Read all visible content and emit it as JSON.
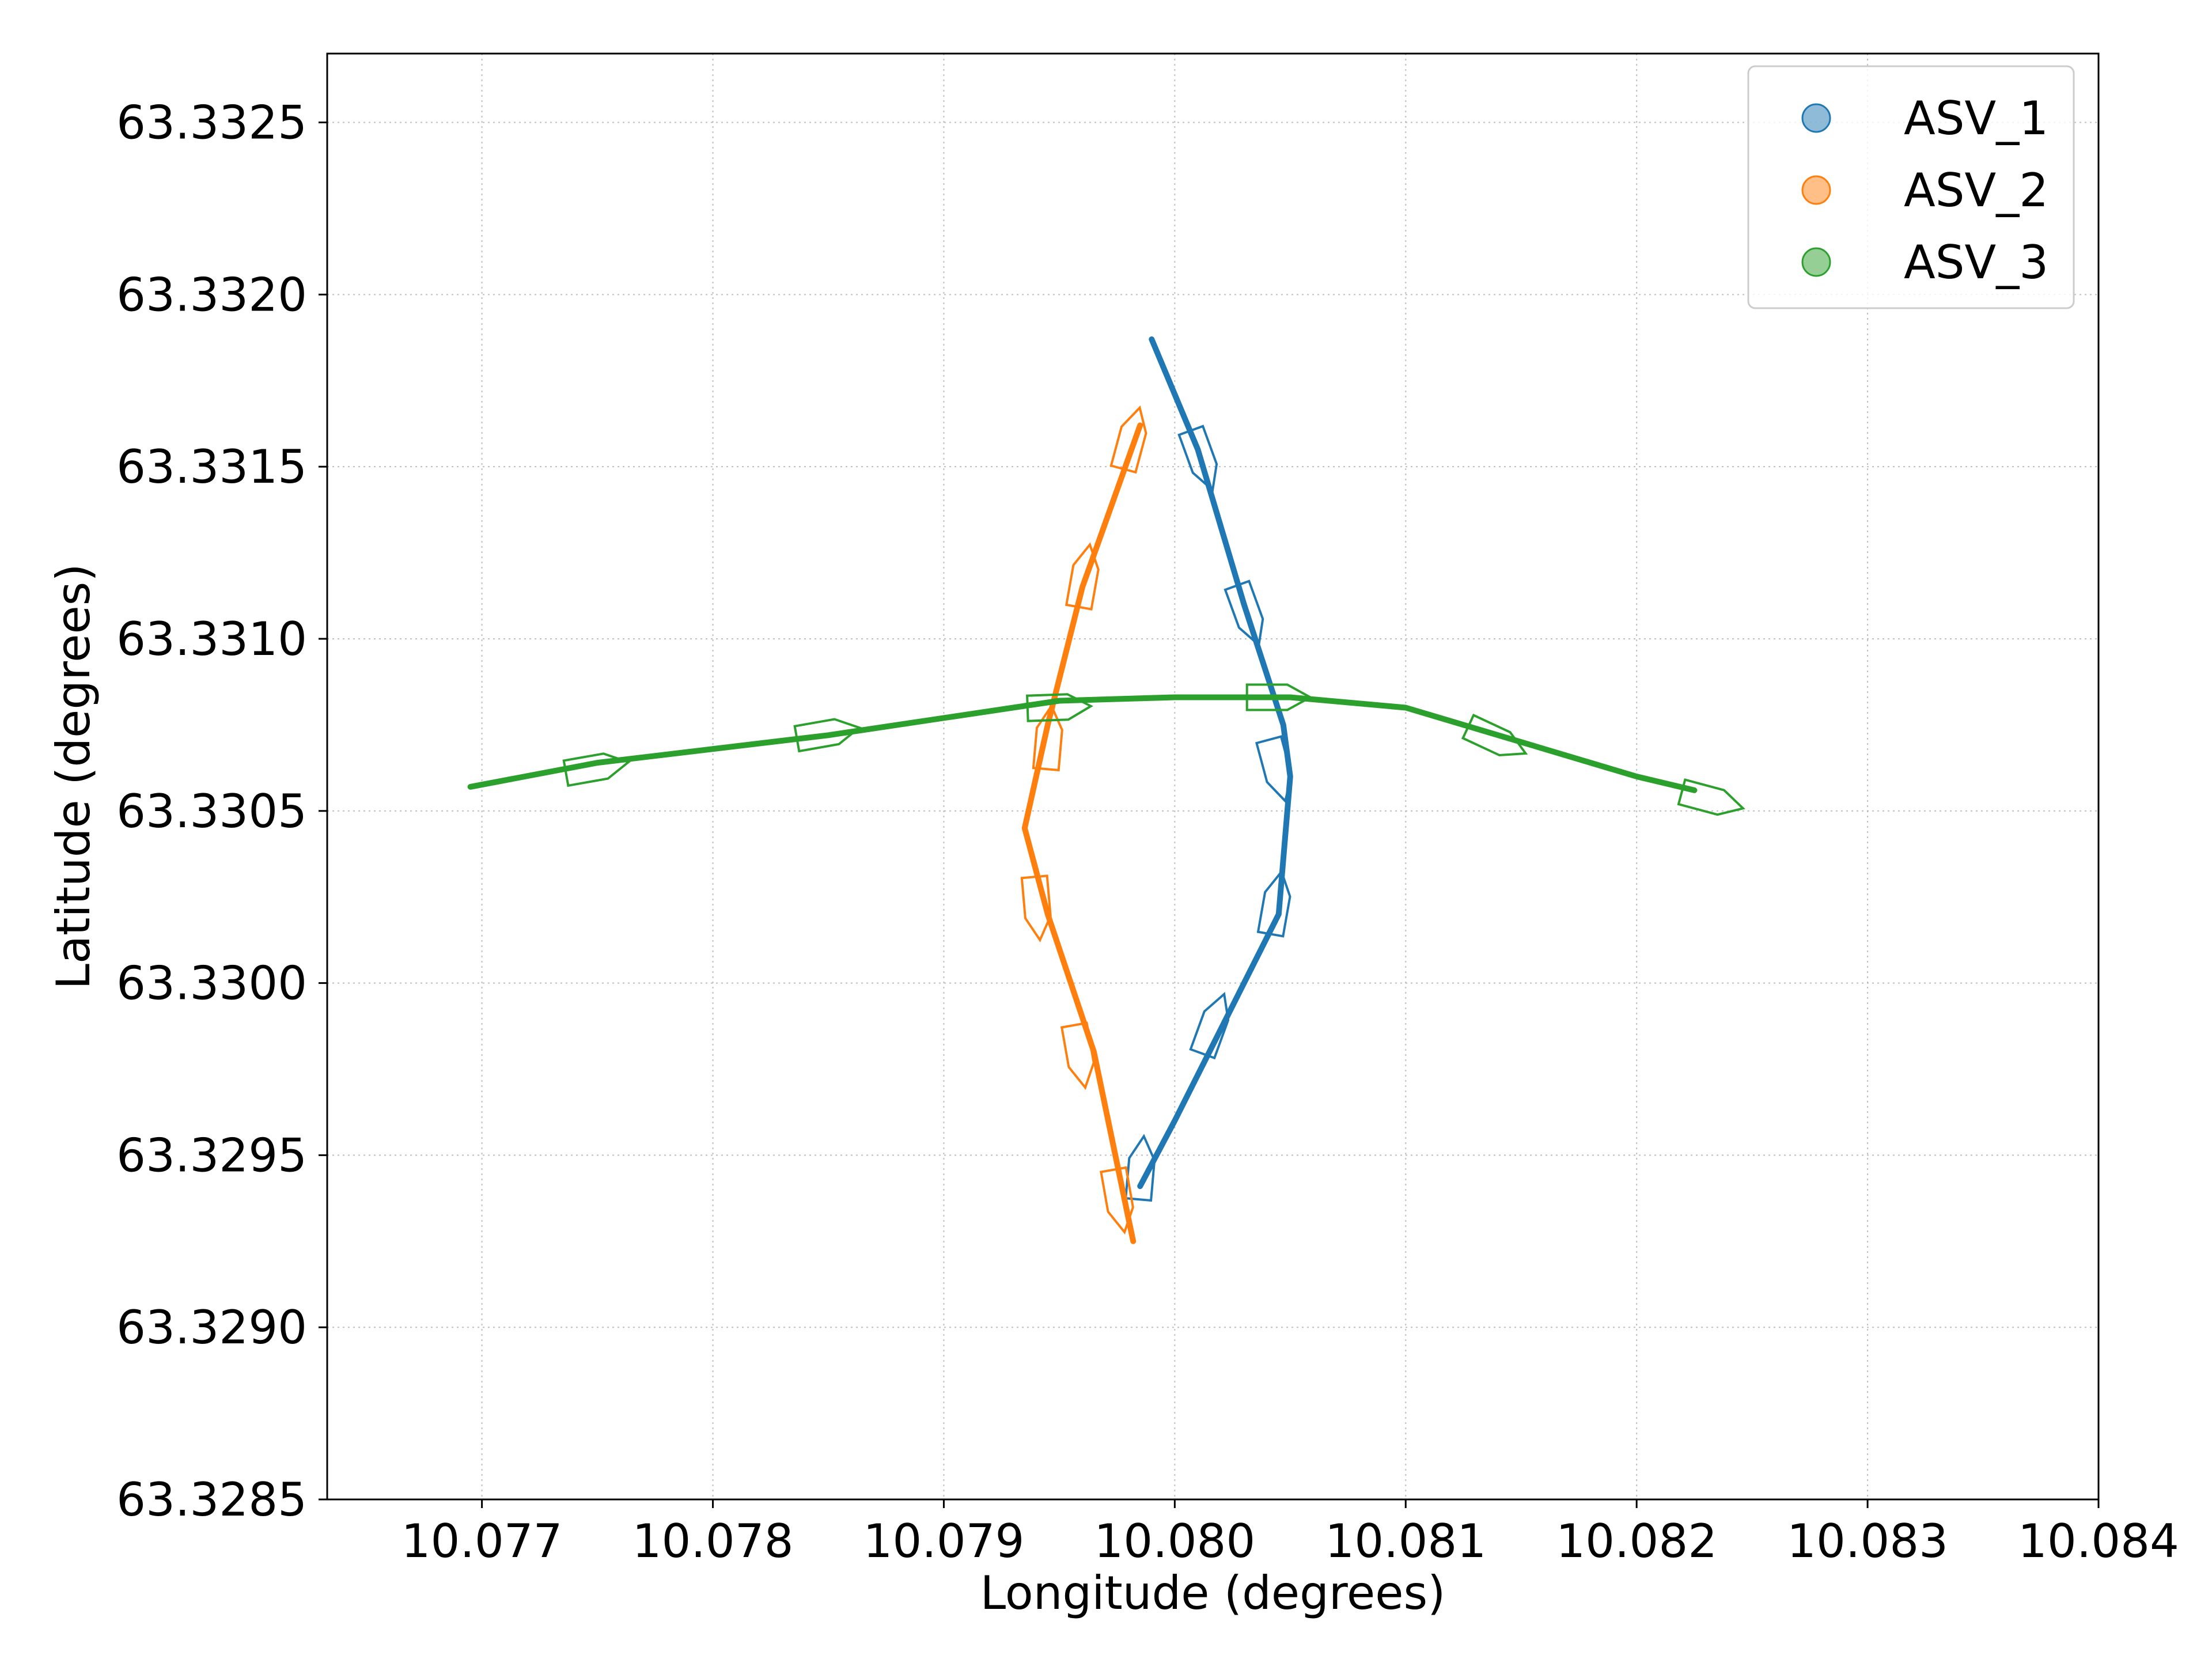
{
  "chart_data": {
    "type": "line",
    "title": "",
    "xlabel": "Longitude (degrees)",
    "ylabel": "Latitude (degrees)",
    "xlim": [
      10.07633,
      10.084
    ],
    "ylim": [
      63.3285,
      63.3327
    ],
    "xticks": [
      "10.077",
      "10.078",
      "10.079",
      "10.080",
      "10.081",
      "10.082",
      "10.083",
      "10.084"
    ],
    "yticks": [
      "63.3285",
      "63.3290",
      "63.3295",
      "63.3300",
      "63.3305",
      "63.3310",
      "63.3315",
      "63.3320",
      "63.3325"
    ],
    "grid": true,
    "legend": {
      "position": "top-right",
      "marker": "circle"
    },
    "series": [
      {
        "name": "ASV_1",
        "color": "#1f77b4",
        "x": [
          10.0799,
          10.0801,
          10.0803,
          10.08047,
          10.0805,
          10.08045,
          10.0803,
          10.08,
          10.07985
        ],
        "y": [
          63.33187,
          63.33155,
          63.3311,
          63.33075,
          63.3306,
          63.3302,
          63.33,
          63.3296,
          63.32941
        ],
        "hulls": [
          {
            "x": 10.0801,
            "y": 63.33155,
            "heading": 160
          },
          {
            "x": 10.0803,
            "y": 63.3311,
            "heading": 160
          },
          {
            "x": 10.08043,
            "y": 63.33065,
            "heading": 165
          },
          {
            "x": 10.08043,
            "y": 63.3302,
            "heading": 10
          },
          {
            "x": 10.08015,
            "y": 63.32985,
            "heading": 20
          },
          {
            "x": 10.07985,
            "y": 63.32943,
            "heading": 5
          }
        ]
      },
      {
        "name": "ASV_2",
        "color": "#ff7f0e",
        "x": [
          10.07985,
          10.0796,
          10.07945,
          10.07935,
          10.07945,
          10.07965,
          10.07982
        ],
        "y": [
          63.33162,
          63.33115,
          63.33075,
          63.33045,
          63.3302,
          63.3298,
          63.32925
        ],
        "hulls": [
          {
            "x": 10.0798,
            "y": 63.33155,
            "heading": 15
          },
          {
            "x": 10.0796,
            "y": 63.33115,
            "heading": 10
          },
          {
            "x": 10.07945,
            "y": 63.33068,
            "heading": 5
          },
          {
            "x": 10.0794,
            "y": 63.33025,
            "heading": 175
          },
          {
            "x": 10.07958,
            "y": 63.32982,
            "heading": 170
          },
          {
            "x": 10.07975,
            "y": 63.3294,
            "heading": 170
          }
        ]
      },
      {
        "name": "ASV_3",
        "color": "#2ca02c",
        "x": [
          10.07695,
          10.0775,
          10.0785,
          10.0795,
          10.08,
          10.0805,
          10.081,
          10.0815,
          10.082,
          10.08225
        ],
        "y": [
          63.33057,
          63.33064,
          63.33072,
          63.33082,
          63.33083,
          63.33083,
          63.3308,
          63.3307,
          63.3306,
          63.33056
        ],
        "hulls": [
          {
            "x": 10.07745,
            "y": 63.33062,
            "heading": 80
          },
          {
            "x": 10.07845,
            "y": 63.33072,
            "heading": 80
          },
          {
            "x": 10.07945,
            "y": 63.3308,
            "heading": 88
          },
          {
            "x": 10.0804,
            "y": 63.33083,
            "heading": 90
          },
          {
            "x": 10.08135,
            "y": 63.33072,
            "heading": 115
          },
          {
            "x": 10.08228,
            "y": 63.33054,
            "heading": 105
          }
        ]
      }
    ]
  }
}
